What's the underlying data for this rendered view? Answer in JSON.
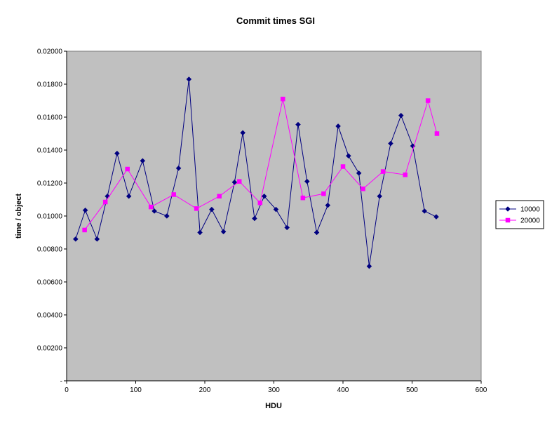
{
  "chart_data": {
    "type": "line",
    "title": "Commit times SGI",
    "xlabel": "HDU",
    "ylabel": "time / object",
    "xlim": [
      0,
      600
    ],
    "ylim": [
      0,
      0.02
    ],
    "x_ticks": [
      0,
      100,
      200,
      300,
      400,
      500,
      600
    ],
    "x_tick_labels": [
      "0",
      "100",
      "200",
      "300",
      "400",
      "500",
      "600"
    ],
    "y_ticks": [
      0,
      0.002,
      0.004,
      0.006,
      0.008,
      0.01,
      0.012,
      0.014,
      0.016,
      0.018,
      0.02
    ],
    "y_tick_labels": [
      "-",
      "0.00200",
      "0.00400",
      "0.00600",
      "0.00800",
      "0.01000",
      "0.01200",
      "0.01400",
      "0.01600",
      "0.01800",
      "0.02000"
    ],
    "grid": false,
    "legend": "right",
    "plot_background": "#c0c0c0",
    "series": [
      {
        "name": "10000",
        "color": "#000080",
        "marker": "diamond",
        "x": [
          13,
          27,
          44,
          59,
          73,
          90,
          110,
          127,
          145,
          162,
          177,
          193,
          210,
          227,
          243,
          255,
          272,
          286,
          303,
          319,
          335,
          348,
          362,
          378,
          393,
          408,
          423,
          438,
          453,
          469,
          484,
          501,
          518,
          535
        ],
        "y": [
          0.0086,
          0.01035,
          0.0086,
          0.0112,
          0.0138,
          0.0112,
          0.01335,
          0.0103,
          0.01,
          0.0129,
          0.0183,
          0.009,
          0.0104,
          0.00905,
          0.01205,
          0.01505,
          0.00985,
          0.0112,
          0.0104,
          0.0093,
          0.01555,
          0.0121,
          0.009,
          0.01065,
          0.01545,
          0.01365,
          0.0126,
          0.00695,
          0.0112,
          0.0144,
          0.0161,
          0.01425,
          0.0103,
          0.00995
        ]
      },
      {
        "name": "20000",
        "color": "#ff00ff",
        "marker": "square",
        "x": [
          26,
          56,
          88,
          122,
          155,
          188,
          221,
          250,
          280,
          313,
          342,
          372,
          400,
          429,
          458,
          490,
          523,
          536
        ],
        "y": [
          0.00915,
          0.01085,
          0.01285,
          0.01055,
          0.0113,
          0.01045,
          0.0112,
          0.0121,
          0.0108,
          0.0171,
          0.0111,
          0.01135,
          0.013,
          0.01165,
          0.0127,
          0.0125,
          0.017,
          0.015
        ]
      }
    ]
  }
}
